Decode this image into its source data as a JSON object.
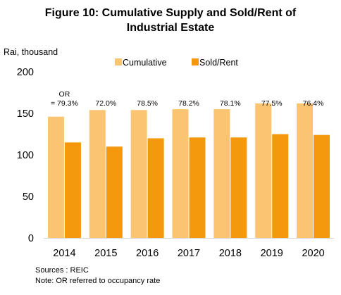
{
  "chart_data": {
    "type": "bar",
    "title_lines": [
      "Figure 10: Cumulative Supply and Sold/Rent of",
      "Industrial Estate"
    ],
    "ylabel": "Rai, thousand",
    "xlabel": "",
    "ylim": [
      0,
      200
    ],
    "yticks": [
      0,
      50,
      100,
      150,
      200
    ],
    "grid": false,
    "legend_position": "top",
    "categories": [
      "2014",
      "2015",
      "2016",
      "2017",
      "2018",
      "2019",
      "2020"
    ],
    "series": [
      {
        "name": "Cumulative",
        "color": "#fac472",
        "values": [
          146,
          154,
          154,
          155,
          155,
          162,
          162
        ]
      },
      {
        "name": "Sold/Rent",
        "color": "#f4990e",
        "values": [
          115,
          110,
          120,
          121,
          121,
          125,
          124
        ]
      }
    ],
    "annotations": [
      {
        "lines": [
          "OR",
          "= 79.3%"
        ]
      },
      {
        "lines": [
          "72.0%"
        ]
      },
      {
        "lines": [
          "78.5%"
        ]
      },
      {
        "lines": [
          "78.2%"
        ]
      },
      {
        "lines": [
          "78.1%"
        ]
      },
      {
        "lines": [
          "77.5%"
        ]
      },
      {
        "lines": [
          "76.4%"
        ]
      }
    ]
  },
  "notes": {
    "source": "Sources : REIC",
    "note": "Note: OR referred to occupancy rate"
  }
}
